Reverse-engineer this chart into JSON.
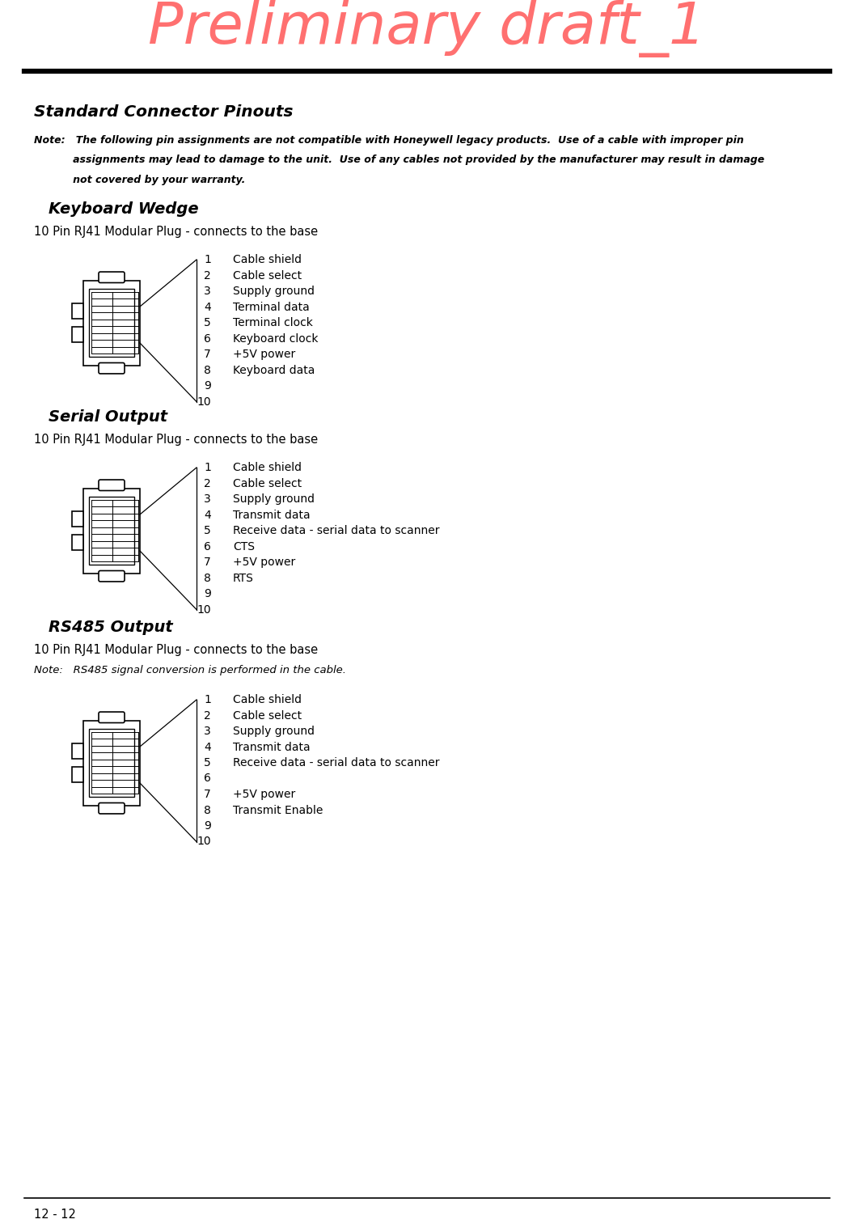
{
  "page_title": "Preliminary draft_1",
  "page_title_color": "#FF7070",
  "page_title_fontsize": 52,
  "page_number": "12 - 12",
  "section_title": "Standard Connector Pinouts",
  "note_lines": [
    "Note:   The following pin assignments are not compatible with Honeywell legacy products.  Use of a cable with improper pin",
    "           assignments may lead to damage to the unit.  Use of any cables not provided by the manufacturer may result in damage",
    "           not covered by your warranty."
  ],
  "subsections": [
    {
      "title": "Keyboard Wedge",
      "subtitle": "10 Pin RJ41 Modular Plug - connects to the base",
      "note": null,
      "pins": [
        {
          "num": "1",
          "desc": "Cable shield"
        },
        {
          "num": "2",
          "desc": "Cable select"
        },
        {
          "num": "3",
          "desc": "Supply ground"
        },
        {
          "num": "4",
          "desc": "Terminal data"
        },
        {
          "num": "5",
          "desc": "Terminal clock"
        },
        {
          "num": "6",
          "desc": "Keyboard clock"
        },
        {
          "num": "7",
          "desc": "+5V power"
        },
        {
          "num": "8",
          "desc": "Keyboard data"
        },
        {
          "num": "9",
          "desc": ""
        },
        {
          "num": "10",
          "desc": ""
        }
      ]
    },
    {
      "title": "Serial Output",
      "subtitle": "10 Pin RJ41 Modular Plug - connects to the base",
      "note": null,
      "pins": [
        {
          "num": "1",
          "desc": "Cable shield"
        },
        {
          "num": "2",
          "desc": "Cable select"
        },
        {
          "num": "3",
          "desc": "Supply ground"
        },
        {
          "num": "4",
          "desc": "Transmit data"
        },
        {
          "num": "5",
          "desc": "Receive data - serial data to scanner"
        },
        {
          "num": "6",
          "desc": "CTS"
        },
        {
          "num": "7",
          "desc": "+5V power"
        },
        {
          "num": "8",
          "desc": "RTS"
        },
        {
          "num": "9",
          "desc": ""
        },
        {
          "num": "10",
          "desc": ""
        }
      ]
    },
    {
      "title": "RS485 Output",
      "subtitle": "10 Pin RJ41 Modular Plug - connects to the base",
      "note": "Note:   RS485 signal conversion is performed in the cable.",
      "pins": [
        {
          "num": "1",
          "desc": "Cable shield"
        },
        {
          "num": "2",
          "desc": "Cable select"
        },
        {
          "num": "3",
          "desc": "Supply ground"
        },
        {
          "num": "4",
          "desc": "Transmit data"
        },
        {
          "num": "5",
          "desc": "Receive data - serial data to scanner"
        },
        {
          "num": "6",
          "desc": ""
        },
        {
          "num": "7",
          "desc": "+5V power"
        },
        {
          "num": "8",
          "desc": "Transmit Enable"
        },
        {
          "num": "9",
          "desc": ""
        },
        {
          "num": "10",
          "desc": ""
        }
      ]
    }
  ]
}
